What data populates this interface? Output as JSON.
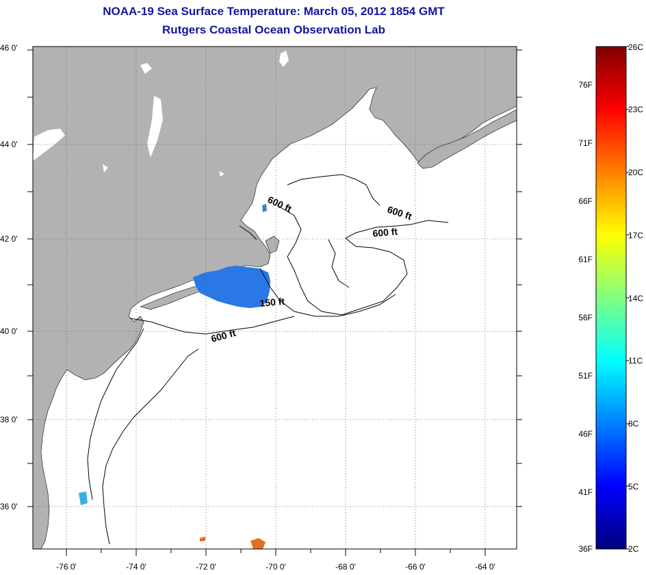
{
  "title": {
    "line1": "NOAA-19 Sea Surface Temperature:  March 05, 2012 1854 GMT",
    "line2": "Rutgers Coastal Ocean Observation Lab"
  },
  "colors": {
    "title": "#1414a0",
    "land": "#b2b2b2",
    "ocean": "#ffffff",
    "contour": "#000000",
    "sst_patch": "#2a78e6"
  },
  "axes": {
    "lon_labels": [
      "-76 0'",
      "-74 0'",
      "-72 0'",
      "-70 0'",
      "-68 0'",
      "-66 0'",
      "-64 0'"
    ],
    "lat_labels": [
      "46 0'",
      "44 0'",
      "42 0'",
      "40 0'",
      "38 0'",
      "36 0'"
    ],
    "lon_range": [
      -77,
      -63
    ],
    "lat_range": [
      35,
      46
    ],
    "grid": "dotted"
  },
  "contour_labels": [
    "600 ft",
    "600 ft",
    "600 ft",
    "150 ft",
    "600 ft"
  ],
  "colorbar": {
    "stops": [
      "#00007f",
      "#0000ff",
      "#0080ff",
      "#00ffff",
      "#80ff80",
      "#ffff00",
      "#ff8000",
      "#ff0000",
      "#7f0000"
    ],
    "celsius_labels": [
      "26C",
      "23C",
      "20C",
      "17C",
      "14C",
      "11C",
      "8C",
      "5C",
      "2C"
    ],
    "fahrenheit_labels": [
      "76F",
      "71F",
      "66F",
      "61F",
      "56F",
      "51F",
      "46F",
      "41F",
      "36F"
    ],
    "range_c": [
      2,
      26
    ],
    "range_f": [
      36,
      78
    ]
  }
}
